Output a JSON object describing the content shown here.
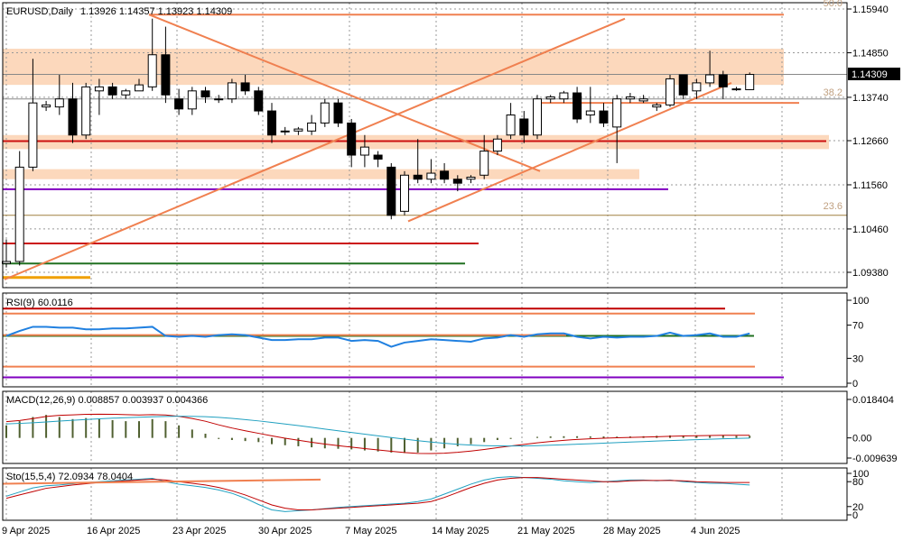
{
  "header": {
    "symbol": "EURUSD,Daily",
    "ohlc": "1.13926 1.14357 1.13923 1.14309"
  },
  "price_axis": {
    "ticks": [
      "1.15940",
      "1.14850",
      "1.13740",
      "1.12660",
      "1.11560",
      "1.10460",
      "1.09380"
    ],
    "current": "1.14309"
  },
  "date_axis": [
    "9 Apr 2025",
    "16 Apr 2025",
    "23 Apr 2025",
    "30 Apr 2025",
    "7 May 2025",
    "14 May 2025",
    "21 May 2025",
    "28 May 2025",
    "4 Jun 2025"
  ],
  "fib_labels": {
    "f50": "50.0",
    "f382": "38.2",
    "f236": "23.6"
  },
  "rsi": {
    "label": "RSI(9) 60.0116",
    "ticks": [
      "100",
      "70",
      "30",
      "0"
    ]
  },
  "macd": {
    "label": "MACD(12,26,9) 0.008857 0.003937 0.004366",
    "ticks": [
      "0.018404",
      "0.00",
      "-0.009639"
    ]
  },
  "sto": {
    "label": "Sto(15,5,4) 72.0934 78.0404",
    "ticks": [
      "100",
      "80",
      "20",
      "0"
    ]
  },
  "colors": {
    "bull": "#ffffff",
    "bear": "#000000",
    "fib": "#f08050",
    "zone": "#fcd8bc",
    "red": "#cc1010",
    "purple": "#8000c0",
    "green": "#207020",
    "orange": "#f0a000",
    "rsi": "#2080e0",
    "signal": "#c00000",
    "sto_main": "#20a0c0"
  },
  "chart_data": {
    "type": "candlestick",
    "candles": [
      {
        "o": 1.096,
        "h": 1.102,
        "l": 1.095,
        "c": 1.0965
      },
      {
        "o": 1.0965,
        "h": 1.124,
        "l": 1.0955,
        "c": 1.12
      },
      {
        "o": 1.12,
        "h": 1.147,
        "l": 1.119,
        "c": 1.136
      },
      {
        "o": 1.135,
        "h": 1.1365,
        "l": 1.134,
        "c": 1.1355
      },
      {
        "o": 1.135,
        "h": 1.143,
        "l": 1.133,
        "c": 1.137
      },
      {
        "o": 1.137,
        "h": 1.141,
        "l": 1.126,
        "c": 1.128
      },
      {
        "o": 1.128,
        "h": 1.141,
        "l": 1.127,
        "c": 1.14
      },
      {
        "o": 1.139,
        "h": 1.142,
        "l": 1.133,
        "c": 1.14
      },
      {
        "o": 1.14,
        "h": 1.141,
        "l": 1.137,
        "c": 1.138
      },
      {
        "o": 1.138,
        "h": 1.1395,
        "l": 1.137,
        "c": 1.139
      },
      {
        "o": 1.139,
        "h": 1.142,
        "l": 1.139,
        "c": 1.1405
      },
      {
        "o": 1.14,
        "h": 1.157,
        "l": 1.139,
        "c": 1.148
      },
      {
        "o": 1.148,
        "h": 1.155,
        "l": 1.136,
        "c": 1.138
      },
      {
        "o": 1.137,
        "h": 1.1395,
        "l": 1.133,
        "c": 1.1345
      },
      {
        "o": 1.1345,
        "h": 1.14,
        "l": 1.133,
        "c": 1.139
      },
      {
        "o": 1.139,
        "h": 1.14,
        "l": 1.136,
        "c": 1.1375
      },
      {
        "o": 1.137,
        "h": 1.138,
        "l": 1.136,
        "c": 1.137
      },
      {
        "o": 1.137,
        "h": 1.142,
        "l": 1.136,
        "c": 1.141
      },
      {
        "o": 1.141,
        "h": 1.143,
        "l": 1.138,
        "c": 1.139
      },
      {
        "o": 1.139,
        "h": 1.14,
        "l": 1.133,
        "c": 1.134
      },
      {
        "o": 1.134,
        "h": 1.136,
        "l": 1.126,
        "c": 1.128
      },
      {
        "o": 1.129,
        "h": 1.13,
        "l": 1.128,
        "c": 1.129
      },
      {
        "o": 1.129,
        "h": 1.13,
        "l": 1.128,
        "c": 1.1295
      },
      {
        "o": 1.129,
        "h": 1.133,
        "l": 1.128,
        "c": 1.131
      },
      {
        "o": 1.131,
        "h": 1.137,
        "l": 1.13,
        "c": 1.136
      },
      {
        "o": 1.136,
        "h": 1.137,
        "l": 1.13,
        "c": 1.131
      },
      {
        "o": 1.131,
        "h": 1.132,
        "l": 1.12,
        "c": 1.123
      },
      {
        "o": 1.123,
        "h": 1.128,
        "l": 1.12,
        "c": 1.125
      },
      {
        "o": 1.123,
        "h": 1.124,
        "l": 1.12,
        "c": 1.122
      },
      {
        "o": 1.12,
        "h": 1.121,
        "l": 1.107,
        "c": 1.108
      },
      {
        "o": 1.109,
        "h": 1.119,
        "l": 1.108,
        "c": 1.118
      },
      {
        "o": 1.118,
        "h": 1.127,
        "l": 1.116,
        "c": 1.117
      },
      {
        "o": 1.117,
        "h": 1.122,
        "l": 1.116,
        "c": 1.1185
      },
      {
        "o": 1.119,
        "h": 1.121,
        "l": 1.116,
        "c": 1.117
      },
      {
        "o": 1.117,
        "h": 1.118,
        "l": 1.114,
        "c": 1.116
      },
      {
        "o": 1.117,
        "h": 1.118,
        "l": 1.116,
        "c": 1.1175
      },
      {
        "o": 1.118,
        "h": 1.128,
        "l": 1.117,
        "c": 1.124
      },
      {
        "o": 1.124,
        "h": 1.128,
        "l": 1.123,
        "c": 1.127
      },
      {
        "o": 1.128,
        "h": 1.136,
        "l": 1.127,
        "c": 1.133
      },
      {
        "o": 1.132,
        "h": 1.134,
        "l": 1.126,
        "c": 1.128
      },
      {
        "o": 1.128,
        "h": 1.138,
        "l": 1.127,
        "c": 1.137
      },
      {
        "o": 1.137,
        "h": 1.138,
        "l": 1.136,
        "c": 1.1375
      },
      {
        "o": 1.137,
        "h": 1.139,
        "l": 1.136,
        "c": 1.1385
      },
      {
        "o": 1.1385,
        "h": 1.14,
        "l": 1.131,
        "c": 1.132
      },
      {
        "o": 1.133,
        "h": 1.14,
        "l": 1.131,
        "c": 1.134
      },
      {
        "o": 1.134,
        "h": 1.136,
        "l": 1.13,
        "c": 1.131
      },
      {
        "o": 1.13,
        "h": 1.138,
        "l": 1.121,
        "c": 1.137
      },
      {
        "o": 1.137,
        "h": 1.1385,
        "l": 1.136,
        "c": 1.1375
      },
      {
        "o": 1.1365,
        "h": 1.138,
        "l": 1.136,
        "c": 1.137
      },
      {
        "o": 1.135,
        "h": 1.136,
        "l": 1.134,
        "c": 1.1355
      },
      {
        "o": 1.1355,
        "h": 1.143,
        "l": 1.135,
        "c": 1.142
      },
      {
        "o": 1.143,
        "h": 1.143,
        "l": 1.137,
        "c": 1.138
      },
      {
        "o": 1.139,
        "h": 1.142,
        "l": 1.137,
        "c": 1.141
      },
      {
        "o": 1.141,
        "h": 1.149,
        "l": 1.14,
        "c": 1.143
      },
      {
        "o": 1.143,
        "h": 1.144,
        "l": 1.137,
        "c": 1.14
      },
      {
        "o": 1.1395,
        "h": 1.14,
        "l": 1.139,
        "c": 1.1395
      },
      {
        "o": 1.1393,
        "h": 1.1436,
        "l": 1.1392,
        "c": 1.1431
      }
    ],
    "rsi": [
      57,
      63,
      68,
      68,
      67,
      67,
      65,
      65,
      66,
      66,
      67,
      68,
      57,
      56,
      57,
      56,
      58,
      59,
      58,
      55,
      52,
      52,
      53,
      53,
      55,
      55,
      51,
      52,
      51,
      44,
      49,
      51,
      53,
      52,
      51,
      50,
      54,
      55,
      58,
      56,
      59,
      60,
      60,
      56,
      54,
      56,
      55,
      56,
      56,
      57,
      61,
      57,
      58,
      60,
      56,
      56,
      60
    ],
    "macd_hist": [
      0.006,
      0.008,
      0.01,
      0.011,
      0.01,
      0.009,
      0.0095,
      0.009,
      0.0085,
      0.008,
      0.008,
      0.009,
      0.008,
      0.006,
      0.004,
      0.002,
      -0.0005,
      -0.001,
      -0.0015,
      -0.002,
      -0.003,
      -0.0035,
      -0.004,
      -0.0045,
      -0.005,
      -0.0052,
      -0.0055,
      -0.006,
      -0.0065,
      -0.007,
      -0.0072,
      -0.007,
      -0.006,
      -0.005,
      -0.004,
      -0.003,
      -0.002,
      -0.001,
      -0.0005,
      0.0,
      0.0005,
      0.0007,
      0.0008,
      0.0008,
      0.0007,
      0.0007,
      0.0006,
      0.0007,
      0.0008,
      0.001,
      0.0012,
      0.0012,
      0.0012,
      0.0012,
      0.0012,
      0.001,
      0.001
    ],
    "sto_main": [
      45,
      55,
      65,
      70,
      72,
      75,
      78,
      80,
      82,
      84,
      86,
      88,
      80,
      74,
      70,
      66,
      60,
      52,
      40,
      25,
      12,
      8,
      10,
      12,
      15,
      18,
      20,
      22,
      24,
      26,
      28,
      32,
      38,
      50,
      62,
      74,
      84,
      90,
      92,
      90,
      88,
      86,
      82,
      80,
      78,
      80,
      82,
      84,
      84,
      82,
      84,
      80,
      78,
      76,
      76,
      74,
      72
    ],
    "sto_signal": [
      40,
      48,
      56,
      64,
      68,
      72,
      75,
      78,
      80,
      82,
      84,
      86,
      84,
      80,
      76,
      72,
      66,
      58,
      48,
      36,
      24,
      16,
      12,
      12,
      14,
      16,
      18,
      20,
      22,
      24,
      26,
      28,
      32,
      42,
      54,
      66,
      76,
      84,
      88,
      90,
      90,
      88,
      86,
      84,
      82,
      80,
      80,
      82,
      83,
      83,
      83,
      82,
      80,
      79,
      78,
      78,
      78
    ]
  }
}
